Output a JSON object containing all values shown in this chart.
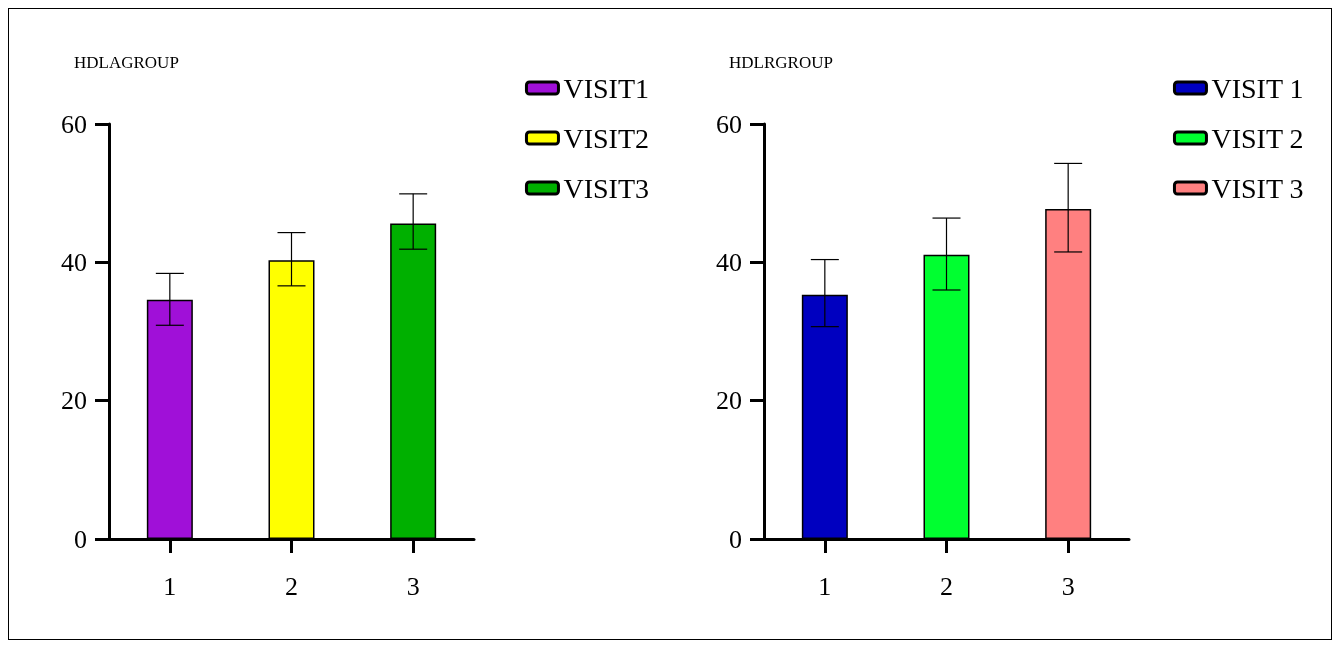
{
  "chart_data": [
    {
      "type": "bar",
      "title": "HDLAGROUP",
      "categories": [
        "1",
        "2",
        "3"
      ],
      "ylim": [
        0,
        60
      ],
      "yticks": [
        0,
        20,
        40,
        60
      ],
      "grid": false,
      "legend": "top right",
      "series": [
        {
          "name": "VISIT1",
          "color": "#a010d8",
          "values": [
            34.6,
            null,
            null
          ],
          "errors": [
            [
              30.9,
              38.4
            ],
            null,
            null
          ]
        },
        {
          "name": "VISIT2",
          "color": "#ffff00",
          "values": [
            null,
            40.3,
            null
          ],
          "errors": [
            null,
            [
              36.6,
              44.3
            ],
            null
          ]
        },
        {
          "name": "VISIT3",
          "color": "#00b000",
          "values": [
            null,
            null,
            45.6
          ],
          "errors": [
            null,
            null,
            [
              41.9,
              49.9
            ]
          ]
        }
      ]
    },
    {
      "type": "bar",
      "title": "HDLRGROUP",
      "categories": [
        "1",
        "2",
        "3"
      ],
      "ylim": [
        0,
        60
      ],
      "yticks": [
        0,
        20,
        40,
        60
      ],
      "grid": false,
      "legend": "top right",
      "series": [
        {
          "name": "VISIT 1",
          "color": "#0000c0",
          "values": [
            35.3,
            null,
            null
          ],
          "errors": [
            [
              30.7,
              40.4
            ],
            null,
            null
          ]
        },
        {
          "name": "VISIT 2",
          "color": "#00ff30",
          "values": [
            null,
            41.1,
            null
          ],
          "errors": [
            null,
            [
              36.0,
              46.4
            ],
            null
          ]
        },
        {
          "name": "VISIT 3",
          "color": "#ff8080",
          "values": [
            null,
            null,
            47.7
          ],
          "errors": [
            null,
            null,
            [
              41.5,
              54.3
            ]
          ]
        }
      ]
    }
  ]
}
